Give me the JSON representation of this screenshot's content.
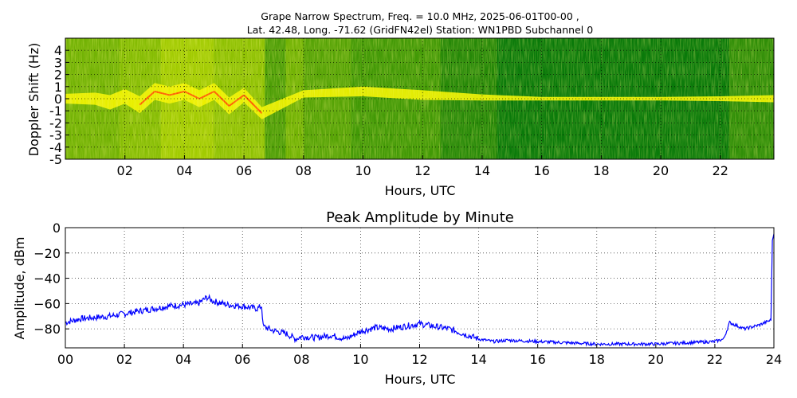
{
  "chart_data": [
    {
      "type": "heatmap",
      "title_lines": [
        "Grape Narrow Spectrum, Freq. = 10.0 MHz, 2025-06-01T00-00 ,",
        "Lat.  42.48, Long. -71.62 (GridFN42el) Station: WN1PBD Subchannel 0"
      ],
      "xlabel": "Hours, UTC",
      "ylabel": "Doppler Shift (Hz)",
      "xlim": [
        0,
        23.8
      ],
      "ylim": [
        -5,
        5
      ],
      "x_ticks": [
        2,
        4,
        6,
        8,
        10,
        12,
        14,
        16,
        18,
        20,
        22
      ],
      "x_tick_labels": [
        "02",
        "04",
        "06",
        "08",
        "10",
        "12",
        "14",
        "16",
        "18",
        "20",
        "22"
      ],
      "y_ticks": [
        4,
        3,
        2,
        1,
        0,
        -1,
        -2,
        -3,
        -4,
        -5
      ],
      "y_tick_labels": [
        "4",
        "3",
        "2",
        "1",
        "0",
        "-1",
        "-2",
        "-3",
        "-4",
        "-5"
      ],
      "grid": true,
      "colors": {
        "background": "#0a7a0a",
        "mid": "#c8e000",
        "high": "#f4f400",
        "peak": "#ff5a00"
      },
      "trace": [
        {
          "h": 0.0,
          "f": 0.0,
          "w": 0.4
        },
        {
          "h": 1.0,
          "f": 0.0,
          "w": 0.5
        },
        {
          "h": 1.5,
          "f": -0.3,
          "w": 0.6
        },
        {
          "h": 2.0,
          "f": 0.2,
          "w": 0.6
        },
        {
          "h": 2.5,
          "f": -0.5,
          "w": 0.7
        },
        {
          "h": 3.0,
          "f": 0.6,
          "w": 0.7
        },
        {
          "h": 3.5,
          "f": 0.3,
          "w": 0.7
        },
        {
          "h": 4.0,
          "f": 0.6,
          "w": 0.7
        },
        {
          "h": 4.5,
          "f": 0.0,
          "w": 0.7
        },
        {
          "h": 5.0,
          "f": 0.6,
          "w": 0.7
        },
        {
          "h": 5.5,
          "f": -0.6,
          "w": 0.7
        },
        {
          "h": 6.0,
          "f": 0.3,
          "w": 0.6
        },
        {
          "h": 6.6,
          "f": -1.2,
          "w": 0.5
        },
        {
          "h": 8.0,
          "f": 0.4,
          "w": 0.3
        },
        {
          "h": 10.0,
          "f": 0.6,
          "w": 0.4
        },
        {
          "h": 12.0,
          "f": 0.3,
          "w": 0.4
        },
        {
          "h": 14.0,
          "f": 0.1,
          "w": 0.25
        },
        {
          "h": 16.0,
          "f": 0.0,
          "w": 0.15
        },
        {
          "h": 20.0,
          "f": 0.0,
          "w": 0.15
        },
        {
          "h": 22.0,
          "f": 0.0,
          "w": 0.2
        },
        {
          "h": 23.8,
          "f": 0.0,
          "w": 0.3
        }
      ]
    },
    {
      "type": "line",
      "title": "Peak Amplitude by Minute",
      "xlabel": "Hours, UTC",
      "ylabel": "Amplitude, dBm",
      "xlim": [
        0,
        24
      ],
      "ylim": [
        -95,
        0
      ],
      "x_ticks": [
        0,
        2,
        4,
        6,
        8,
        10,
        12,
        14,
        16,
        18,
        20,
        22,
        24
      ],
      "x_tick_labels": [
        "00",
        "02",
        "04",
        "06",
        "08",
        "10",
        "12",
        "14",
        "16",
        "18",
        "20",
        "22",
        "24"
      ],
      "y_ticks": [
        0,
        -20,
        -40,
        -60,
        -80
      ],
      "y_tick_labels": [
        "0",
        "−20",
        "−40",
        "−60",
        "−80"
      ],
      "grid": true,
      "line_color": "#0000ff",
      "series": [
        {
          "x": [
            0.0,
            0.5,
            1.0,
            1.5,
            2.0,
            2.5,
            3.0,
            3.5,
            4.0,
            4.5,
            4.8,
            5.0,
            5.5,
            6.0,
            6.5,
            6.65,
            6.7,
            7.0,
            7.5,
            7.8,
            8.0,
            8.5,
            9.0,
            9.5,
            10.0,
            10.5,
            11.0,
            11.5,
            12.0,
            12.5,
            13.0,
            13.5,
            14.0,
            14.5,
            15.0,
            16.0,
            17.0,
            18.0,
            19.0,
            20.0,
            21.0,
            22.0,
            22.3,
            22.5,
            22.8,
            23.0,
            23.5,
            23.9,
            23.95,
            24.0
          ],
          "y": [
            -75,
            -72,
            -71,
            -70,
            -68,
            -66,
            -64,
            -62,
            -61,
            -60,
            -55,
            -58,
            -61,
            -62,
            -64,
            -62,
            -78,
            -81,
            -84,
            -88,
            -86,
            -87,
            -85,
            -88,
            -82,
            -79,
            -80,
            -78,
            -76,
            -78,
            -80,
            -84,
            -88,
            -90,
            -89,
            -90,
            -91,
            -92,
            -92,
            -92,
            -91,
            -90,
            -88,
            -75,
            -78,
            -80,
            -77,
            -73,
            -10,
            -5
          ]
        }
      ]
    }
  ]
}
